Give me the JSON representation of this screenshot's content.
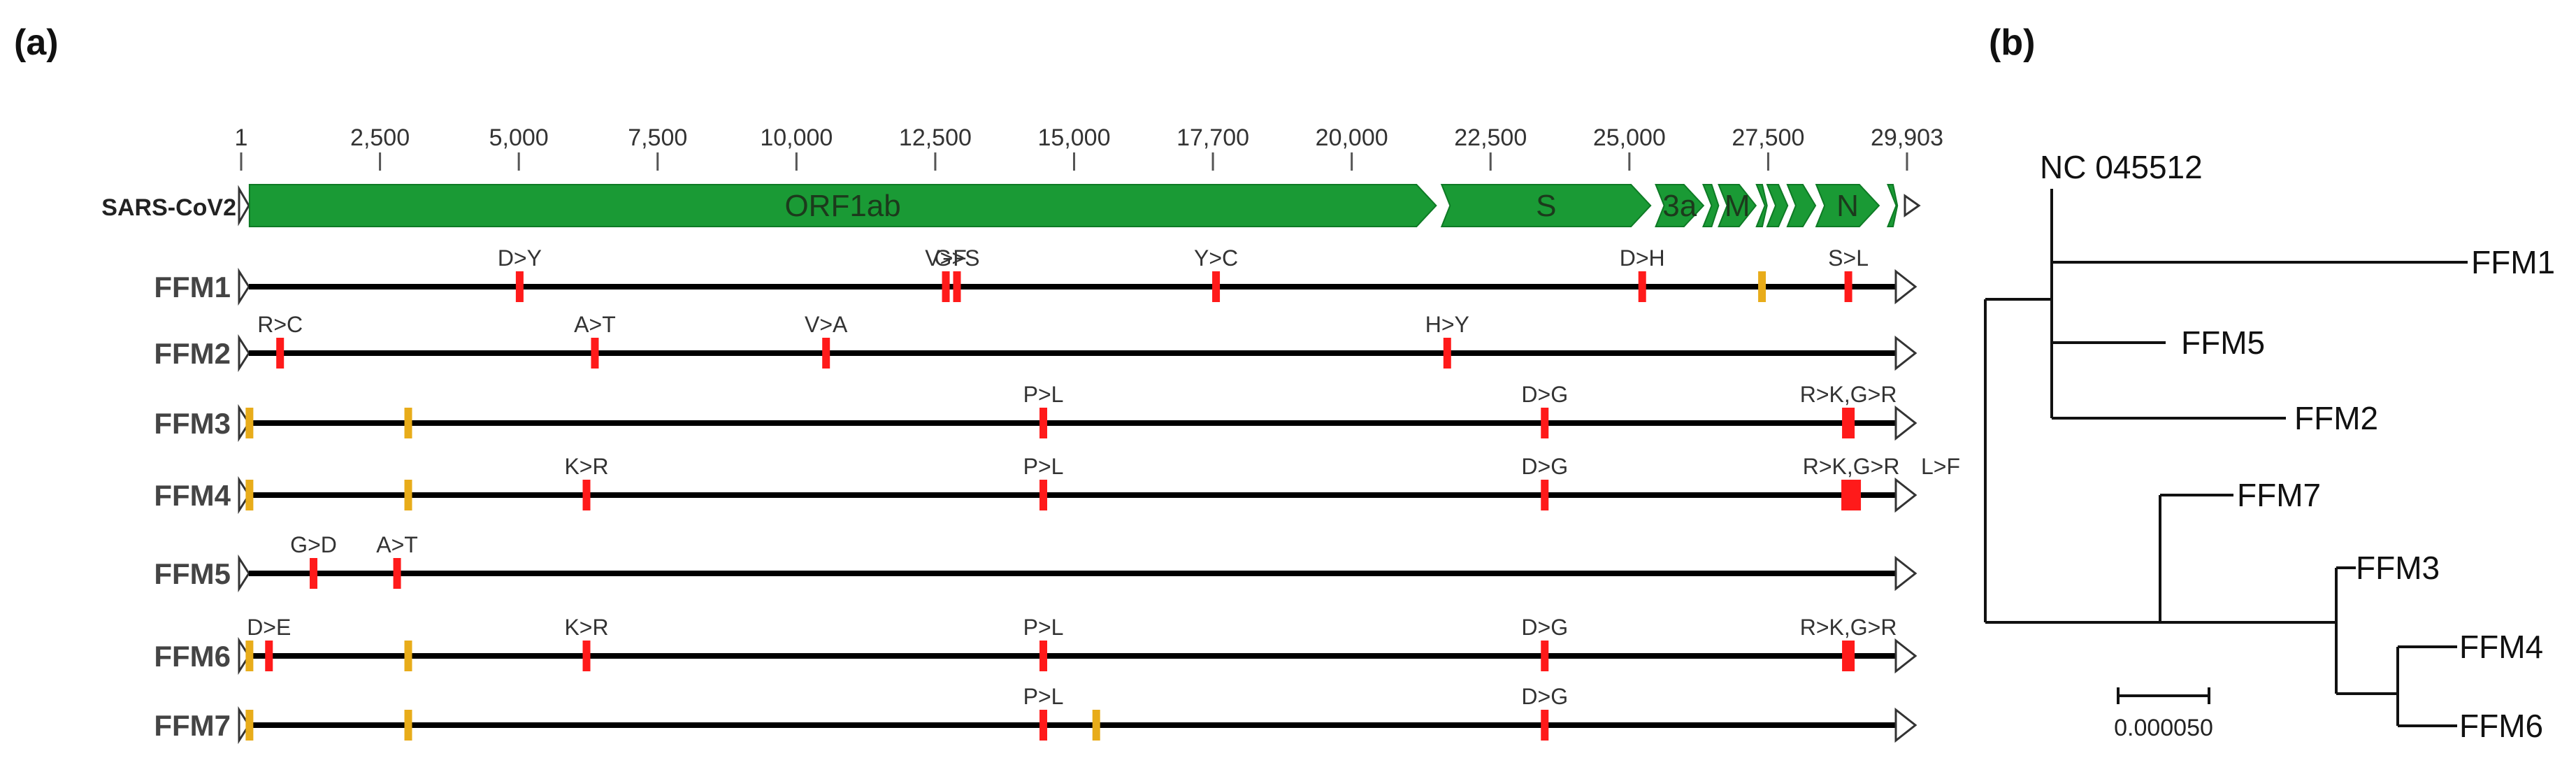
{
  "panels": {
    "a": "(a)",
    "b": "(b)"
  },
  "genome": {
    "reference_label": "SARS-CoV2",
    "ticks": [
      "1",
      "2,500",
      "5,000",
      "7,500",
      "10,000",
      "12,500",
      "15,000",
      "17,700",
      "20,000",
      "22,500",
      "25,000",
      "27,500",
      "29,903"
    ],
    "genes": [
      {
        "name": "ORF1ab",
        "start": 150,
        "end": 21450
      },
      {
        "name": "S",
        "start": 21550,
        "end": 25300
      },
      {
        "name": "3a",
        "start": 25393,
        "end": 26250
      },
      {
        "name": "",
        "start": 26245,
        "end": 26520
      },
      {
        "name": "M",
        "start": 26523,
        "end": 27190
      },
      {
        "name": "",
        "start": 27202,
        "end": 27390
      },
      {
        "name": "",
        "start": 27394,
        "end": 27760
      },
      {
        "name": "",
        "start": 27756,
        "end": 28260
      },
      {
        "name": "N",
        "start": 28274,
        "end": 29400
      },
      {
        "name": "",
        "start": 29558,
        "end": 29730
      }
    ],
    "colors": {
      "gene": "#1a9a35",
      "gene_dark": "#0e7a25",
      "nonsynonymous": "#ff1a1a",
      "synonymous": "#e8ac1a",
      "backbone": "#000000"
    }
  },
  "samples": [
    {
      "name": "FFM1",
      "markers": [
        {
          "pos": 5000,
          "label": "D>Y",
          "type": "ns"
        },
        {
          "pos": 12650,
          "label": "V>F",
          "type": "ns"
        },
        {
          "pos": 12850,
          "label": "G>S",
          "type": "ns"
        },
        {
          "pos": 17500,
          "label": "Y>C",
          "type": "ns"
        },
        {
          "pos": 25150,
          "label": "D>H",
          "type": "ns"
        },
        {
          "pos": 27300,
          "label": "",
          "type": "syn"
        },
        {
          "pos": 28850,
          "label": "S>L",
          "type": "ns"
        }
      ]
    },
    {
      "name": "FFM2",
      "markers": [
        {
          "pos": 700,
          "label": "R>C",
          "type": "ns"
        },
        {
          "pos": 6350,
          "label": "A>T",
          "type": "ns"
        },
        {
          "pos": 10500,
          "label": "V>A",
          "type": "ns"
        },
        {
          "pos": 21650,
          "label": "H>Y",
          "type": "ns"
        }
      ]
    },
    {
      "name": "FFM3",
      "markers": [
        {
          "pos": 150,
          "label": "",
          "type": "syn"
        },
        {
          "pos": 3000,
          "label": "",
          "type": "syn"
        },
        {
          "pos": 14400,
          "label": "P>L",
          "type": "ns"
        },
        {
          "pos": 23400,
          "label": "D>G",
          "type": "ns"
        },
        {
          "pos": 28850,
          "label": "R>K,G>R",
          "type": "ns",
          "wide": 1
        }
      ]
    },
    {
      "name": "FFM4",
      "markers": [
        {
          "pos": 150,
          "label": "",
          "type": "syn"
        },
        {
          "pos": 3000,
          "label": "",
          "type": "syn"
        },
        {
          "pos": 6200,
          "label": "K>R",
          "type": "ns"
        },
        {
          "pos": 14400,
          "label": "P>L",
          "type": "ns"
        },
        {
          "pos": 23400,
          "label": "D>G",
          "type": "ns"
        },
        {
          "pos": 28900,
          "label": "R>K,G>R",
          "type": "ns",
          "wide": 2
        },
        {
          "pos": 29903,
          "label": "L>F",
          "type": "label-only"
        }
      ]
    },
    {
      "name": "FFM5",
      "markers": [
        {
          "pos": 1300,
          "label": "G>D",
          "type": "ns"
        },
        {
          "pos": 2800,
          "label": "A>T",
          "type": "ns"
        }
      ]
    },
    {
      "name": "FFM6",
      "markers": [
        {
          "pos": 150,
          "label": "",
          "type": "syn"
        },
        {
          "pos": 500,
          "label": "D>E",
          "type": "ns"
        },
        {
          "pos": 3000,
          "label": "",
          "type": "syn"
        },
        {
          "pos": 6200,
          "label": "K>R",
          "type": "ns"
        },
        {
          "pos": 14400,
          "label": "P>L",
          "type": "ns"
        },
        {
          "pos": 23400,
          "label": "D>G",
          "type": "ns"
        },
        {
          "pos": 28850,
          "label": "R>K,G>R",
          "type": "ns",
          "wide": 1
        }
      ]
    },
    {
      "name": "FFM7",
      "markers": [
        {
          "pos": 150,
          "label": "",
          "type": "syn"
        },
        {
          "pos": 3000,
          "label": "",
          "type": "syn"
        },
        {
          "pos": 14400,
          "label": "P>L",
          "type": "ns"
        },
        {
          "pos": 15350,
          "label": "",
          "type": "syn"
        },
        {
          "pos": 23400,
          "label": "D>G",
          "type": "ns"
        }
      ]
    }
  ],
  "tree": {
    "root_label": "NC 045512",
    "leaves": [
      "FFM1",
      "FFM5",
      "FFM2",
      "FFM7",
      "FFM3",
      "FFM4",
      "FFM6"
    ],
    "scale_label": "0.000050"
  }
}
